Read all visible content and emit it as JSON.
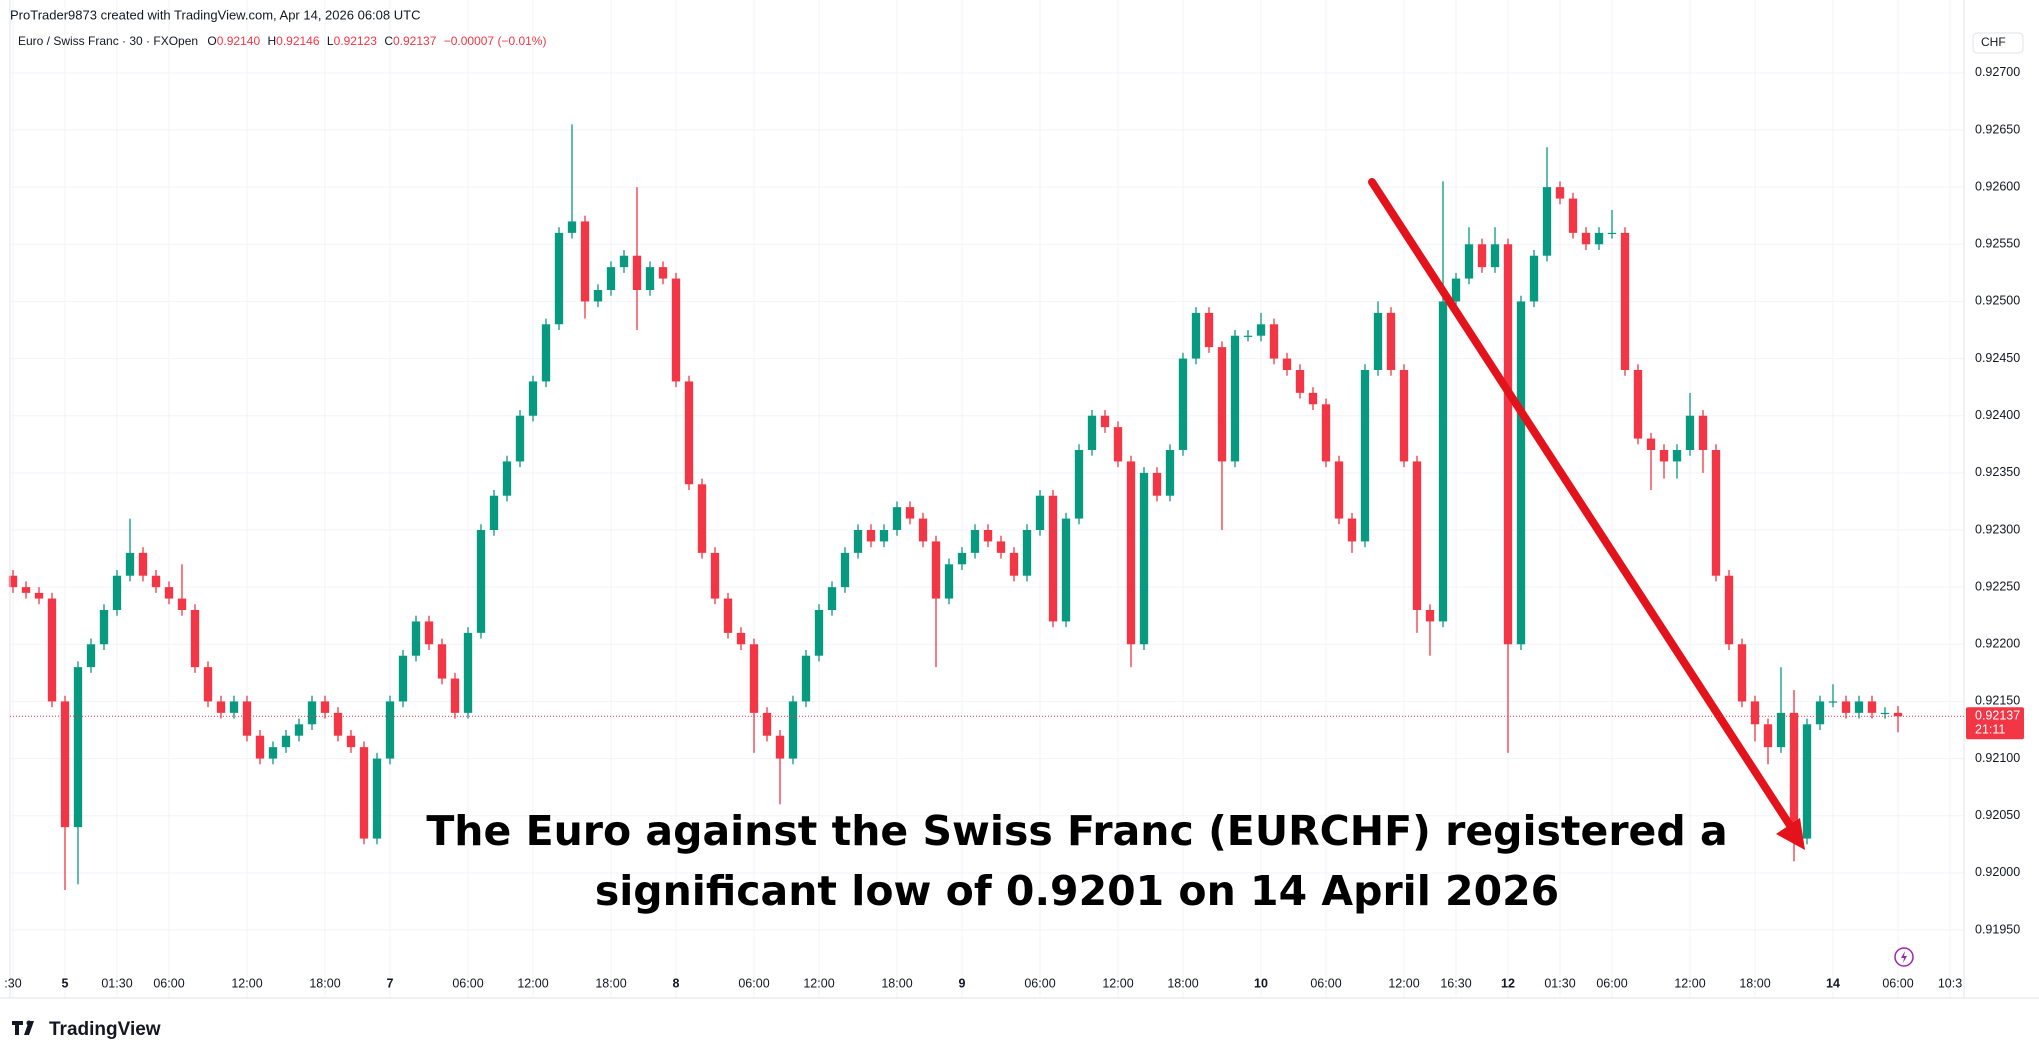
{
  "header": {
    "credit": "ProTrader9873 created with TradingView.com, Apr 14, 2026 06:08 UTC"
  },
  "legend": {
    "symbol": "Euro / Swiss Franc · 30 · FXOpen",
    "ohlc_labels": [
      "O",
      "H",
      "L",
      "C"
    ],
    "ohlc_values": [
      "0.92140",
      "0.92146",
      "0.92123",
      "0.92137"
    ],
    "change": "−0.00007 (−0.01%)"
  },
  "branding": "TradingView",
  "chart_data": {
    "type": "candlestick",
    "categories": [
      ":30",
      null,
      null,
      null,
      "5",
      null,
      null,
      null,
      "01:30",
      null,
      null,
      null,
      "06:00",
      null,
      null,
      null,
      null,
      null,
      "12:00",
      null,
      null,
      null,
      null,
      null,
      "18:00",
      null,
      null,
      null,
      null,
      "7",
      null,
      null,
      null,
      null,
      null,
      "06:00",
      null,
      null,
      null,
      null,
      "12:00",
      null,
      null,
      null,
      null,
      null,
      "18:00",
      null,
      null,
      null,
      null,
      "8",
      null,
      null,
      null,
      null,
      null,
      "06:00",
      null,
      null,
      null,
      null,
      "12:00",
      null,
      null,
      null,
      null,
      null,
      "18:00",
      null,
      null,
      null,
      null,
      "9",
      null,
      null,
      null,
      null,
      null,
      "06:00",
      null,
      null,
      null,
      null,
      null,
      "12:00",
      null,
      null,
      null,
      null,
      "18:00",
      null,
      null,
      null,
      null,
      null,
      "10",
      null,
      null,
      null,
      null,
      "06:00",
      null,
      null,
      null,
      null,
      null,
      "12:00",
      null,
      null,
      null,
      "16:30",
      null,
      null,
      null,
      "12",
      null,
      null,
      null,
      "01:30",
      null,
      null,
      null,
      "06:00",
      null,
      null,
      null,
      null,
      null,
      "12:00",
      null,
      null,
      null,
      null,
      "18:00",
      null,
      null,
      null,
      null,
      null,
      "14",
      null,
      null,
      null,
      null,
      "06:00",
      null,
      null,
      null,
      "10:3"
    ],
    "open": [
      0.9226,
      0.9225,
      0.92245,
      0.9224,
      0.9215,
      0.9204,
      0.9218,
      0.922,
      0.9223,
      0.9226,
      0.9228,
      0.9226,
      0.9225,
      0.9224,
      0.9223,
      0.9218,
      0.9215,
      0.9214,
      0.9215,
      0.9212,
      0.921,
      0.9211,
      0.9212,
      0.9213,
      0.9215,
      0.9214,
      0.9212,
      0.9211,
      0.9203,
      0.921,
      0.9215,
      0.9219,
      0.9222,
      0.922,
      0.9217,
      0.9214,
      0.9221,
      0.923,
      0.9233,
      0.9236,
      0.924,
      0.9243,
      0.9248,
      0.9256,
      0.9257,
      0.925,
      0.9251,
      0.9253,
      0.9254,
      0.9251,
      0.9253,
      0.9252,
      0.9243,
      0.9234,
      0.9228,
      0.9224,
      0.9221,
      0.922,
      0.9214,
      0.9212,
      0.921,
      0.9215,
      0.9219,
      0.9223,
      0.9225,
      0.9228,
      0.923,
      0.9229,
      0.923,
      0.9232,
      0.9231,
      0.9229,
      0.9224,
      0.9227,
      0.9228,
      0.923,
      0.9229,
      0.9228,
      0.9226,
      0.923,
      0.9233,
      0.9222,
      0.9231,
      0.9237,
      0.924,
      0.9239,
      0.9236,
      0.922,
      0.9235,
      0.9233,
      0.9237,
      0.9245,
      0.9249,
      0.9246,
      0.9236,
      0.9247,
      0.9247,
      0.9248,
      0.9245,
      0.9244,
      0.9242,
      0.9241,
      0.9236,
      0.9231,
      0.9229,
      0.9244,
      0.9249,
      0.9244,
      0.9236,
      0.9223,
      0.9222,
      0.925,
      0.9252,
      0.9255,
      0.9253,
      0.9255,
      0.922,
      0.925,
      0.9254,
      0.926,
      0.9259,
      0.9256,
      0.9255,
      0.9256,
      0.9256,
      0.9244,
      0.9238,
      0.9237,
      0.9236,
      0.9237,
      0.924,
      0.9237,
      0.9226,
      0.922,
      0.9215,
      0.9213,
      0.9211,
      0.9214,
      0.9203,
      0.9213,
      0.9215,
      0.9215,
      0.9214,
      0.9215,
      0.9214,
      0.9214,
      null,
      null,
      null,
      null
    ],
    "high": [
      0.92265,
      0.92255,
      0.9225,
      0.92245,
      0.92155,
      0.92185,
      0.92205,
      0.92235,
      0.92265,
      0.9231,
      0.92285,
      0.92265,
      0.92255,
      0.9227,
      0.92235,
      0.92185,
      0.92155,
      0.92155,
      0.92155,
      0.92125,
      0.92115,
      0.92125,
      0.92135,
      0.92155,
      0.92155,
      0.92145,
      0.92125,
      0.92115,
      0.92105,
      0.92155,
      0.92195,
      0.92225,
      0.92225,
      0.92205,
      0.92175,
      0.92215,
      0.92305,
      0.92335,
      0.92365,
      0.92405,
      0.92435,
      0.92485,
      0.92565,
      0.92655,
      0.92575,
      0.92515,
      0.92535,
      0.92545,
      0.926,
      0.92535,
      0.92535,
      0.92525,
      0.92435,
      0.92345,
      0.92285,
      0.92245,
      0.92215,
      0.92205,
      0.92145,
      0.92125,
      0.92155,
      0.92195,
      0.92235,
      0.92255,
      0.92285,
      0.92305,
      0.92305,
      0.92305,
      0.92325,
      0.92325,
      0.92315,
      0.92295,
      0.92275,
      0.92285,
      0.92305,
      0.92305,
      0.92295,
      0.92285,
      0.92305,
      0.92335,
      0.92335,
      0.92315,
      0.92375,
      0.92405,
      0.92405,
      0.92395,
      0.92365,
      0.92355,
      0.92355,
      0.92375,
      0.92455,
      0.92495,
      0.92495,
      0.92465,
      0.92475,
      0.92475,
      0.9249,
      0.92485,
      0.92455,
      0.92445,
      0.92425,
      0.92415,
      0.92365,
      0.92315,
      0.92445,
      0.925,
      0.92495,
      0.92445,
      0.92365,
      0.92235,
      0.92605,
      0.92525,
      0.92565,
      0.92555,
      0.92565,
      0.92555,
      0.92505,
      0.92545,
      0.92635,
      0.92605,
      0.92595,
      0.92565,
      0.92565,
      0.9258,
      0.92565,
      0.92445,
      0.92385,
      0.92375,
      0.92375,
      0.9242,
      0.92405,
      0.92375,
      0.92265,
      0.92205,
      0.92155,
      0.92135,
      0.9218,
      0.9216,
      0.92135,
      0.92155,
      0.92165,
      0.92155,
      0.92155,
      0.92155,
      0.92145,
      0.92146,
      null,
      null,
      null,
      null
    ],
    "low": [
      0.92245,
      0.9224,
      0.92235,
      0.92145,
      0.91985,
      0.9199,
      0.92175,
      0.92195,
      0.92225,
      0.92255,
      0.92255,
      0.92245,
      0.92235,
      0.92225,
      0.92175,
      0.92145,
      0.92135,
      0.92135,
      0.92115,
      0.92095,
      0.92095,
      0.92105,
      0.92115,
      0.92125,
      0.92135,
      0.92115,
      0.92105,
      0.92025,
      0.92025,
      0.92095,
      0.92145,
      0.92185,
      0.92195,
      0.92165,
      0.92135,
      0.92135,
      0.92205,
      0.92295,
      0.92325,
      0.92355,
      0.92395,
      0.92425,
      0.92475,
      0.92555,
      0.92485,
      0.92495,
      0.92505,
      0.92525,
      0.92475,
      0.92505,
      0.92515,
      0.92425,
      0.92335,
      0.92275,
      0.92235,
      0.92205,
      0.92195,
      0.92105,
      0.92115,
      0.9206,
      0.92095,
      0.92145,
      0.92185,
      0.92225,
      0.92245,
      0.92275,
      0.92285,
      0.92285,
      0.92295,
      0.92305,
      0.92285,
      0.9218,
      0.92235,
      0.92265,
      0.92275,
      0.92285,
      0.92275,
      0.92255,
      0.92255,
      0.92295,
      0.92215,
      0.92215,
      0.92305,
      0.92365,
      0.92385,
      0.92355,
      0.9218,
      0.92195,
      0.92325,
      0.92325,
      0.92365,
      0.92445,
      0.92455,
      0.923,
      0.92355,
      0.92465,
      0.92465,
      0.92445,
      0.92435,
      0.92415,
      0.92405,
      0.92355,
      0.92305,
      0.9228,
      0.92285,
      0.92435,
      0.92435,
      0.92355,
      0.9221,
      0.9219,
      0.92215,
      0.92495,
      0.92515,
      0.92525,
      0.92525,
      0.92105,
      0.92195,
      0.92495,
      0.92535,
      0.92585,
      0.92555,
      0.92545,
      0.92545,
      0.92555,
      0.92435,
      0.92375,
      0.92335,
      0.92345,
      0.92345,
      0.92365,
      0.9235,
      0.92255,
      0.92195,
      0.92145,
      0.92115,
      0.92095,
      0.92105,
      0.9201,
      0.92025,
      0.92125,
      0.92145,
      0.92135,
      0.92135,
      0.92135,
      0.92135,
      0.92123,
      null,
      null,
      null,
      null
    ],
    "close": [
      0.9225,
      0.92245,
      0.9224,
      0.9215,
      0.9204,
      0.9218,
      0.922,
      0.9223,
      0.9226,
      0.9228,
      0.9226,
      0.9225,
      0.9224,
      0.9223,
      0.9218,
      0.9215,
      0.9214,
      0.9215,
      0.9212,
      0.921,
      0.9211,
      0.9212,
      0.9213,
      0.9215,
      0.9214,
      0.9212,
      0.9211,
      0.9203,
      0.921,
      0.9215,
      0.9219,
      0.9222,
      0.922,
      0.9217,
      0.9214,
      0.9221,
      0.923,
      0.9233,
      0.9236,
      0.924,
      0.9243,
      0.9248,
      0.9256,
      0.9257,
      0.925,
      0.9251,
      0.9253,
      0.9254,
      0.9251,
      0.9253,
      0.9252,
      0.9243,
      0.9234,
      0.9228,
      0.9224,
      0.9221,
      0.922,
      0.9214,
      0.9212,
      0.921,
      0.9215,
      0.9219,
      0.9223,
      0.9225,
      0.9228,
      0.923,
      0.9229,
      0.923,
      0.9232,
      0.9231,
      0.9229,
      0.9224,
      0.9227,
      0.9228,
      0.923,
      0.9229,
      0.9228,
      0.9226,
      0.923,
      0.9233,
      0.9222,
      0.9231,
      0.9237,
      0.924,
      0.9239,
      0.9236,
      0.922,
      0.9235,
      0.9233,
      0.9237,
      0.9245,
      0.9249,
      0.9246,
      0.9236,
      0.9247,
      0.9247,
      0.9248,
      0.9245,
      0.9244,
      0.9242,
      0.9241,
      0.9236,
      0.9231,
      0.9229,
      0.9244,
      0.9249,
      0.9244,
      0.9236,
      0.9223,
      0.9222,
      0.925,
      0.9252,
      0.9255,
      0.9253,
      0.9255,
      0.922,
      0.925,
      0.9254,
      0.926,
      0.9259,
      0.9256,
      0.9255,
      0.9256,
      0.9256,
      0.9244,
      0.9238,
      0.9237,
      0.9236,
      0.9237,
      0.924,
      0.9237,
      0.9226,
      0.922,
      0.9215,
      0.9213,
      0.9211,
      0.9214,
      0.9203,
      0.9213,
      0.9215,
      0.9215,
      0.9214,
      0.9215,
      0.9214,
      0.9214,
      0.92137,
      null,
      null,
      null,
      null
    ],
    "up_color": "#089981",
    "down_color": "#f23645",
    "ylim": [
      0.91922,
      0.92741
    ],
    "yticks": [
      {
        "value": 0.9195,
        "label": "0.91950"
      },
      {
        "value": 0.92,
        "label": "0.92000"
      },
      {
        "value": 0.9205,
        "label": "0.92050"
      },
      {
        "value": 0.921,
        "label": "0.92100"
      },
      {
        "value": 0.9215,
        "label": "0.92150"
      },
      {
        "value": 0.922,
        "label": "0.92200"
      },
      {
        "value": 0.9225,
        "label": "0.92250"
      },
      {
        "value": 0.923,
        "label": "0.92300"
      },
      {
        "value": 0.9235,
        "label": "0.92350"
      },
      {
        "value": 0.924,
        "label": "0.92400"
      },
      {
        "value": 0.9245,
        "label": "0.92450"
      },
      {
        "value": 0.925,
        "label": "0.92500"
      },
      {
        "value": 0.9255,
        "label": "0.92550"
      },
      {
        "value": 0.926,
        "label": "0.92600"
      },
      {
        "value": 0.9265,
        "label": "0.92650"
      },
      {
        "value": 0.927,
        "label": "0.92700"
      }
    ],
    "grid": true,
    "y_axis_unit": "CHF",
    "last_price": {
      "value": 0.92137,
      "label": "0.92137"
    },
    "countdown": "21:11",
    "annotation": [
      "The Euro against the Swiss Franc (EURCHF) registered a",
      "significant low of 0.9201 on 14 April 2026"
    ]
  }
}
